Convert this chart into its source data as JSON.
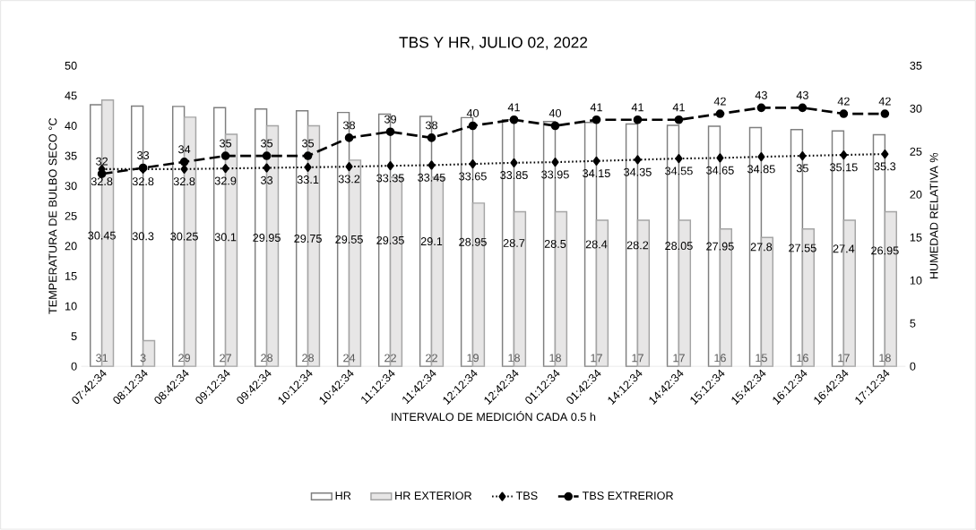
{
  "chart_data": {
    "type": "bar",
    "title": "TBS Y HR, JULIO 02, 2022",
    "xlabel": "INTERVALO DE MEDICIÓN CADA 0.5 h",
    "ylabel": "TEMPERATURA DE BULBO SECO °C",
    "y2label": "HUMEDAD RELATIVA %",
    "categories": [
      "07:42:34",
      "08:12:34",
      "08:42:34",
      "09:12:34",
      "09:42:34",
      "10:12:34",
      "10:42:34",
      "11:12:34",
      "11:42:34",
      "12:12:34",
      "12:42:34",
      "01:12:34",
      "01:42:34",
      "14:12:34",
      "14:42:34",
      "15:12:34",
      "15:42:34",
      "16:12:34",
      "16:42:34",
      "17:12:34"
    ],
    "series": [
      {
        "name": "HR",
        "axis": "y2",
        "color": "#ffffff",
        "values": [
          30.45,
          30.3,
          30.25,
          30.1,
          29.95,
          29.75,
          29.55,
          29.35,
          29.1,
          28.95,
          28.7,
          28.5,
          28.4,
          28.2,
          28.05,
          27.95,
          27.8,
          27.55,
          27.4,
          26.95
        ]
      },
      {
        "name": "HR EXTERIOR",
        "axis": "y2",
        "color": "#e7e6e6",
        "values": [
          31,
          3,
          29,
          27,
          28,
          28,
          24,
          22,
          22,
          19,
          18,
          18,
          17,
          17,
          17,
          16,
          15,
          16,
          17,
          18
        ]
      },
      {
        "name": "TBS",
        "type": "line",
        "color": "#000000",
        "line_style": "dotted",
        "marker": "diamond",
        "values": [
          32.8,
          32.8,
          32.8,
          32.9,
          33,
          33.1,
          33.2,
          33.35,
          33.45,
          33.65,
          33.85,
          33.95,
          34.15,
          34.35,
          34.55,
          34.65,
          34.85,
          35,
          35.15,
          35.3
        ]
      },
      {
        "name": "TBS EXTRERIOR",
        "type": "line",
        "color": "#000000",
        "line_style": "dashed",
        "marker": "circle",
        "values": [
          32,
          33,
          34,
          35,
          35,
          35,
          38,
          39,
          38,
          40,
          41,
          40,
          41,
          41,
          41,
          42,
          43,
          43,
          42,
          42
        ]
      }
    ],
    "ylim": [
      0,
      50
    ],
    "yticks": [
      0,
      5,
      10,
      15,
      20,
      25,
      30,
      35,
      40,
      45,
      50
    ],
    "y2lim": [
      0,
      35
    ],
    "y2ticks": [
      0,
      5,
      10,
      15,
      20,
      25,
      30,
      35
    ],
    "data_labels": true,
    "legend": "bottom",
    "grid": false
  }
}
